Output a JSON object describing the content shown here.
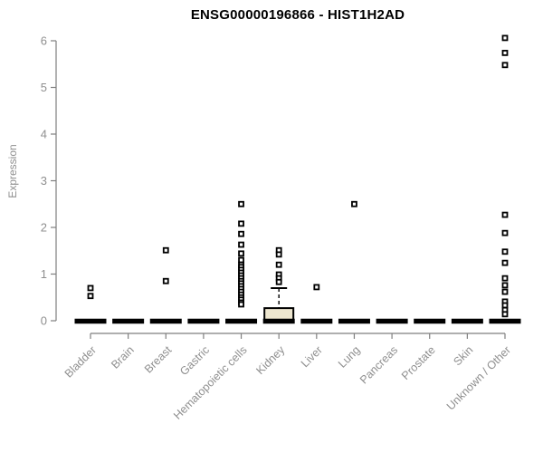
{
  "chart_data": {
    "type": "boxplot",
    "title": "ENSG00000196866 - HIST1H2AD",
    "ylabel": "Expression",
    "xlabel": "",
    "ylim": [
      0,
      6
    ],
    "yticks": [
      0,
      1,
      2,
      3,
      4,
      5,
      6
    ],
    "grid": false,
    "legend": "none",
    "categories": [
      "Bladder",
      "Brain",
      "Breast",
      "Gastric",
      "Hematopoietic cells",
      "Kidney",
      "Liver",
      "Lung",
      "Pancreas",
      "Prostate",
      "Skin",
      "Unknown / Other"
    ],
    "boxes": [
      {
        "category": "Bladder",
        "median": 0,
        "q1": 0,
        "q3": 0,
        "whisker_low": 0,
        "whisker_high": 0,
        "outliers": [
          0.7,
          0.53
        ]
      },
      {
        "category": "Brain",
        "median": 0,
        "q1": 0,
        "q3": 0,
        "whisker_low": 0,
        "whisker_high": 0,
        "outliers": []
      },
      {
        "category": "Breast",
        "median": 0,
        "q1": 0,
        "q3": 0,
        "whisker_low": 0,
        "whisker_high": 0,
        "outliers": [
          1.51,
          0.85
        ]
      },
      {
        "category": "Gastric",
        "median": 0,
        "q1": 0,
        "q3": 0,
        "whisker_low": 0,
        "whisker_high": 0,
        "outliers": []
      },
      {
        "category": "Hematopoietic cells",
        "median": 0,
        "q1": 0,
        "q3": 0,
        "whisker_low": 0,
        "whisker_high": 0,
        "outliers": [
          2.5,
          2.08,
          1.86,
          1.63,
          1.44,
          1.3,
          1.2,
          1.15,
          1.09,
          1.03,
          0.97,
          0.91,
          0.85,
          0.8,
          0.74,
          0.68,
          0.62,
          0.56,
          0.5,
          0.45,
          0.39,
          0.35
        ]
      },
      {
        "category": "Kidney",
        "median": 0,
        "q1": 0,
        "q3": 0.27,
        "whisker_low": 0,
        "whisker_high": 0.7,
        "outliers": [
          1.51,
          1.42,
          1.2,
          0.99,
          0.91,
          0.83
        ]
      },
      {
        "category": "Liver",
        "median": 0,
        "q1": 0,
        "q3": 0,
        "whisker_low": 0,
        "whisker_high": 0,
        "outliers": [
          0.72
        ]
      },
      {
        "category": "Lung",
        "median": 0,
        "q1": 0,
        "q3": 0,
        "whisker_low": 0,
        "whisker_high": 0,
        "outliers": [
          2.5
        ]
      },
      {
        "category": "Pancreas",
        "median": 0,
        "q1": 0,
        "q3": 0,
        "whisker_low": 0,
        "whisker_high": 0,
        "outliers": []
      },
      {
        "category": "Prostate",
        "median": 0,
        "q1": 0,
        "q3": 0,
        "whisker_low": 0,
        "whisker_high": 0,
        "outliers": []
      },
      {
        "category": "Skin",
        "median": 0,
        "q1": 0,
        "q3": 0,
        "whisker_low": 0,
        "whisker_high": 0,
        "outliers": []
      },
      {
        "category": "Unknown / Other",
        "median": 0,
        "q1": 0,
        "q3": 0,
        "whisker_low": 0,
        "whisker_high": 0,
        "outliers": [
          6.06,
          5.74,
          5.48,
          2.27,
          1.88,
          1.48,
          1.24,
          0.91,
          0.76,
          0.62,
          0.41,
          0.33,
          0.23,
          0.14
        ]
      }
    ],
    "colors": {
      "box_fill": "#ede6cf",
      "box_border": "#000000",
      "median_bar": "#000000",
      "outlier_stroke": "#000000",
      "outlier_fill": "#ffffff",
      "axis_line": "#7f7f7f",
      "tick_text": "#8f8f8f",
      "title_text": "#000000",
      "background": "#ffffff"
    }
  }
}
